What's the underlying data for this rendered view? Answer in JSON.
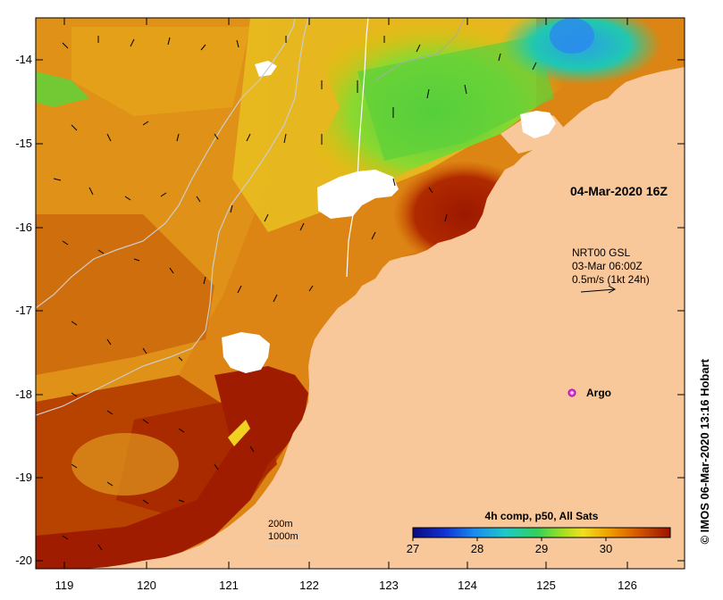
{
  "map": {
    "date_label": "04-Mar-2020 16Z",
    "current_legend": {
      "line1": "NRT00 GSL",
      "line2": "03-Mar 06:00Z",
      "line3": "0.5m/s (1kt 24h)"
    },
    "argo_label": "Argo",
    "contour_legend": {
      "line1": "200m",
      "line2": "1000m"
    },
    "colorbar": {
      "title": "4h comp, p50, All Sats",
      "ticks": [
        "27",
        "28",
        "29",
        "30"
      ]
    },
    "credit": "© IMOS 06-Mar-2020 13:16 Hobart",
    "lat_labels": [
      "-14",
      "-15",
      "-16",
      "-17",
      "-18",
      "-19",
      "-20"
    ],
    "lon_labels": [
      "119",
      "120",
      "121",
      "122",
      "123",
      "124",
      "125",
      "126"
    ],
    "colors": {
      "land": "#f8c79a",
      "warm_max": "#a01a00",
      "warm": "#d46a00",
      "mid": "#e6a000",
      "yellow": "#f0dc20",
      "green": "#5ed23a",
      "cyan": "#20c8b4",
      "blue": "#2a8cf0"
    }
  }
}
